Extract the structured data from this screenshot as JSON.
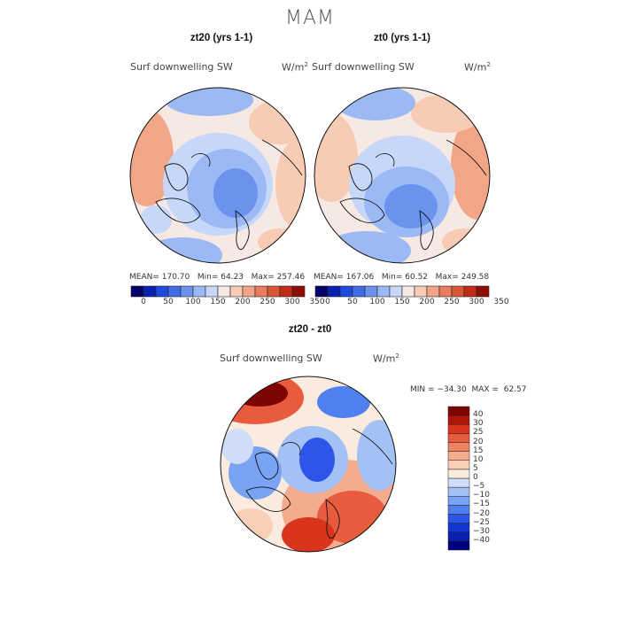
{
  "figure": {
    "title": "MAM"
  },
  "panels": [
    {
      "title": "zt20 (yrs 1-1)",
      "variable": "Surf downwelling SW",
      "unit_base": "W/m",
      "unit_exp": "2",
      "mean_label": "MEAN=",
      "mean": "170.70",
      "min_label": "Min=",
      "min": "64.23",
      "max_label": "Max=",
      "max": "257.46"
    },
    {
      "title": "zt0 (yrs 1-1)",
      "variable": "Surf downwelling SW",
      "unit_base": "W/m",
      "unit_exp": "2",
      "mean_label": "MEAN=",
      "mean": "167.06",
      "min_label": "Min=",
      "min": "60.52",
      "max_label": "Max=",
      "max": "249.58"
    },
    {
      "title": "zt20 - zt0",
      "variable": "Surf downwelling SW",
      "unit_base": "W/m",
      "unit_exp": "2",
      "min_label": "MIN =",
      "min": "−34.30",
      "max_label": "MAX =",
      "max": "62.57"
    }
  ],
  "colorbars": {
    "absolute": {
      "colors": [
        "#08006a",
        "#0a20b0",
        "#1f49e0",
        "#3f6de8",
        "#6b93ee",
        "#9bb9f4",
        "#c7d7f9",
        "#f6e8e2",
        "#f8cbb5",
        "#f2a688",
        "#e87c5d",
        "#db5537",
        "#c12b17",
        "#8e0d05"
      ],
      "ticks": [
        "0",
        "50",
        "100",
        "150",
        "200",
        "250",
        "300",
        "350"
      ]
    },
    "difference": {
      "colors": [
        "#00007f",
        "#0a1fb0",
        "#1535d2",
        "#2d55e8",
        "#5080ef",
        "#7aa3f3",
        "#a4c1f6",
        "#cfddf9",
        "#fbeade",
        "#f9cfb8",
        "#f5ab8d",
        "#ef8263",
        "#e85b3d",
        "#d9341c",
        "#b01407",
        "#7d0502"
      ],
      "ticks": [
        "−40",
        "−30",
        "−25",
        "−20",
        "−15",
        "−10",
        "−5",
        "0",
        "5",
        "10",
        "15",
        "20",
        "25",
        "30",
        "40"
      ]
    }
  }
}
